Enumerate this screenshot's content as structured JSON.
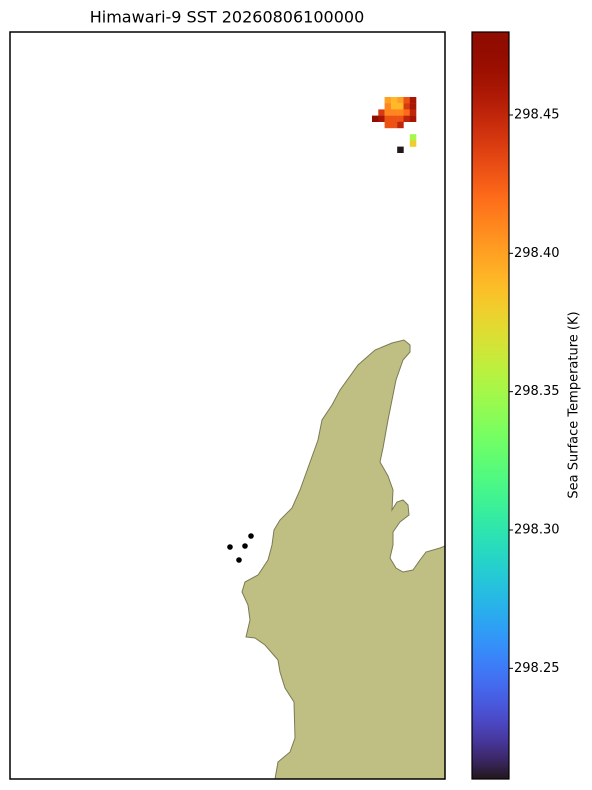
{
  "chart_data": {
    "type": "map",
    "title": "Himawari-9 SST 20260806100000",
    "colormap": "turbo",
    "colorbar": {
      "label": "Sea Surface Temperature (K)",
      "clim": [
        298.21,
        298.48
      ],
      "ticks": [
        298.25,
        {
          "value": 298.3,
          "label": "298.30"
        },
        298.35,
        {
          "value": 298.4,
          "label": "298.40"
        },
        298.45
      ]
    },
    "pixels": [
      298.4,
      298.39,
      298.4,
      298.43,
      298.46,
      298.41,
      298.39,
      298.39,
      298.44,
      298.46,
      298.44,
      298.41,
      298.41,
      298.41,
      298.42,
      298.45,
      298.48,
      298.46,
      298.43,
      298.43,
      298.43,
      298.45,
      298.46,
      298.43,
      298.43,
      298.45,
      298.35,
      298.38,
      298.21
    ]
  }
}
